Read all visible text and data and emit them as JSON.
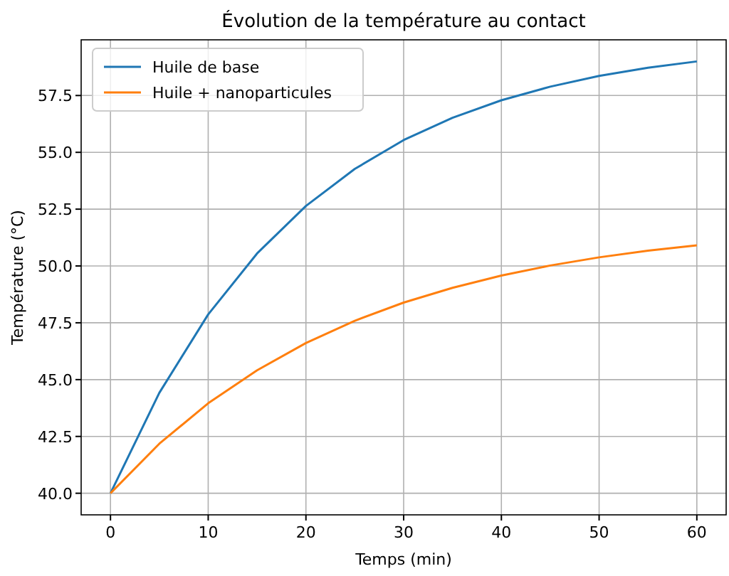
{
  "chart_data": {
    "type": "line",
    "title": "Évolution de la température au contact",
    "xlabel": "Temps (min)",
    "ylabel": "Température (°C)",
    "x": [
      0,
      5,
      10,
      15,
      20,
      25,
      30,
      35,
      40,
      45,
      50,
      55,
      60
    ],
    "series": [
      {
        "name": "Huile de base",
        "color": "#1f77b4",
        "values": [
          40,
          44.42,
          47.87,
          50.55,
          52.64,
          54.27,
          55.54,
          56.52,
          57.29,
          57.89,
          58.36,
          58.72,
          59.0
        ]
      },
      {
        "name": "Huile + nanoparticules",
        "color": "#ff7f0e",
        "values": [
          40,
          42.18,
          43.96,
          45.41,
          46.61,
          47.59,
          48.39,
          49.04,
          49.58,
          50.02,
          50.38,
          50.67,
          50.91
        ]
      }
    ],
    "xlim": [
      -3,
      63
    ],
    "xticks": [
      0,
      10,
      20,
      30,
      40,
      50,
      60
    ],
    "ylim": [
      39.05,
      59.95
    ],
    "yticks": [
      {
        "value": 40,
        "label": "40.0"
      },
      {
        "value": 42.5,
        "label": "42.5"
      },
      {
        "value": 45,
        "label": "45.0"
      },
      {
        "value": 47.5,
        "label": "47.5"
      },
      {
        "value": 50,
        "label": "50.0"
      },
      {
        "value": 52.5,
        "label": "52.5"
      },
      {
        "value": 55,
        "label": "55.0"
      },
      {
        "value": 57.5,
        "label": "57.5"
      }
    ],
    "grid": true,
    "legend": "top left",
    "marker": "none",
    "line_style": "solid"
  }
}
